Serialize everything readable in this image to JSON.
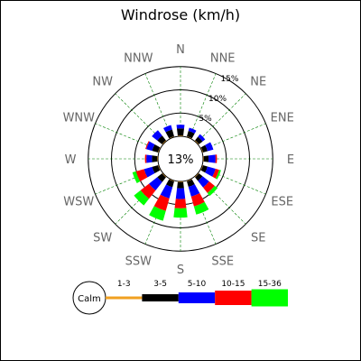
{
  "chart_data": {
    "type": "windrose",
    "title": "Windrose (km/h)",
    "calm_percent_label": "13%",
    "directions": [
      "N",
      "NNE",
      "NE",
      "ENE",
      "E",
      "ESE",
      "SE",
      "SSE",
      "S",
      "SSW",
      "SW",
      "WSW",
      "W",
      "WNW",
      "NW",
      "NNW"
    ],
    "ring_labels": [
      "5%",
      "10%",
      "15%"
    ],
    "ring_values": [
      5,
      10,
      15
    ],
    "bins": [
      {
        "label": "1-3",
        "color": "#f0a020"
      },
      {
        "label": "3-5",
        "color": "#000000"
      },
      {
        "label": "5-10",
        "color": "#0000ff"
      },
      {
        "label": "10-15",
        "color": "#ff0000"
      },
      {
        "label": "15-36",
        "color": "#00ff00"
      }
    ],
    "calm_label": "Calm",
    "frequencies": [
      [
        0.2,
        1.5,
        0.8,
        0.0,
        0.0
      ],
      [
        0.2,
        1.2,
        0.7,
        0.0,
        0.0
      ],
      [
        0.2,
        1.0,
        0.7,
        0.0,
        0.0
      ],
      [
        0.2,
        1.0,
        1.3,
        0.0,
        0.0
      ],
      [
        0.2,
        1.0,
        1.5,
        0.3,
        0.0
      ],
      [
        0.2,
        1.0,
        1.8,
        0.8,
        0.4
      ],
      [
        0.2,
        1.0,
        1.8,
        1.5,
        0.8
      ],
      [
        0.2,
        1.2,
        2.2,
        2.2,
        1.8
      ],
      [
        0.2,
        1.3,
        2.3,
        2.0,
        2.0
      ],
      [
        0.2,
        1.3,
        2.5,
        2.8,
        2.2
      ],
      [
        0.2,
        1.3,
        2.3,
        2.3,
        1.8
      ],
      [
        0.2,
        1.3,
        1.8,
        1.8,
        0.8
      ],
      [
        0.2,
        1.1,
        1.2,
        0.3,
        0.0
      ],
      [
        0.2,
        1.3,
        1.3,
        0.2,
        0.0
      ],
      [
        0.2,
        1.3,
        1.5,
        0.0,
        0.0
      ],
      [
        0.2,
        1.5,
        1.0,
        0.0,
        0.0
      ]
    ]
  }
}
